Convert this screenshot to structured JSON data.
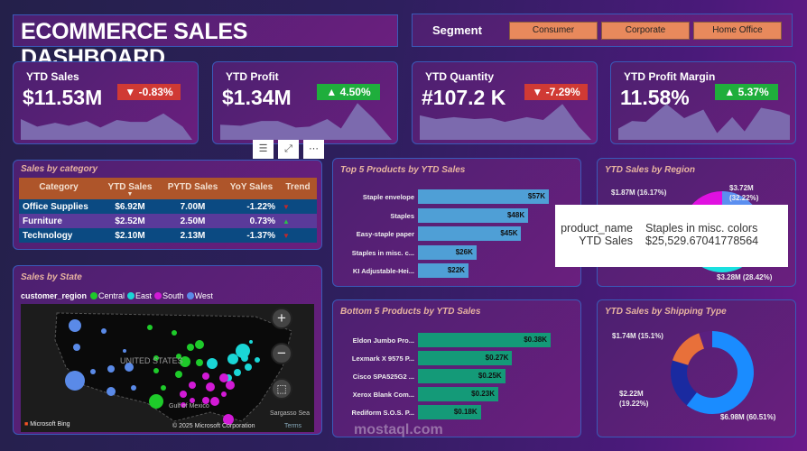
{
  "header": {
    "title": "ECOMMERCE SALES DASHBOARD",
    "segment_label": "Segment",
    "segments": [
      "Consumer",
      "Corporate",
      "Home Office"
    ]
  },
  "kpis": [
    {
      "label": "YTD Sales",
      "value": "$11.53M",
      "change": "-0.83%",
      "direction": "down"
    },
    {
      "label": "YTD Profit",
      "value": "$1.34M",
      "change": "4.50%",
      "direction": "up"
    },
    {
      "label": "YTD Quantity",
      "value": "#107.2 K",
      "change": "-7.29%",
      "direction": "down"
    },
    {
      "label": "YTD Profit Margin",
      "value": "11.58%",
      "change": "5.37%",
      "direction": "up"
    }
  ],
  "colors": {
    "negative": "#d03a34",
    "positive": "#1fae3c",
    "header_orange": "#ae552a",
    "bar_blue": "#4f9fd6",
    "bar_green": "#149a78",
    "sparkline": "#7c6aae"
  },
  "visual_header": {
    "icons": [
      "filter-icon",
      "focus-mode-icon",
      "more-options-icon"
    ],
    "labels": [
      "☰",
      "⤢",
      "⋯"
    ]
  },
  "category_table": {
    "title": "Sales by category",
    "columns": [
      "Category",
      "YTD Sales",
      "PYTD Sales",
      "YoY Sales",
      "Trend"
    ],
    "rows": [
      {
        "category": "Office Supplies",
        "ytd": "$6.92M",
        "pytd": "7.00M",
        "yoy": "-1.22%",
        "trend": "down"
      },
      {
        "category": "Furniture",
        "ytd": "$2.52M",
        "pytd": "2.50M",
        "yoy": "0.73%",
        "trend": "up"
      },
      {
        "category": "Technology",
        "ytd": "$2.10M",
        "pytd": "2.13M",
        "yoy": "-1.37%",
        "trend": "down"
      }
    ]
  },
  "state_map": {
    "title": "Sales by State",
    "legend_title": "customer_region",
    "legend": [
      {
        "name": "Central",
        "color": "#1ecb2a"
      },
      {
        "name": "East",
        "color": "#1ad6d6"
      },
      {
        "name": "South",
        "color": "#d21ad6"
      },
      {
        "name": "West",
        "color": "#5a8ae8"
      }
    ],
    "country_label": "UNITED STATES",
    "gulf_label": "Gulf of Mexico",
    "sea_label": "Sargasso Sea",
    "bing": "Microsoft Bing",
    "copyright": "© 2025 Microsoft Corporation",
    "terms": "Terms",
    "zoom_in": "+",
    "zoom_out": "−"
  },
  "top5": {
    "title": "Top 5 Products by YTD Sales",
    "items": [
      {
        "name": "Staple envelope",
        "value": 57,
        "label": "$57K"
      },
      {
        "name": "Staples",
        "value": 48,
        "label": "$48K"
      },
      {
        "name": "Easy-staple paper",
        "value": 45,
        "label": "$45K"
      },
      {
        "name": "Staples in misc. c...",
        "value": 25.5,
        "label": "$26K"
      },
      {
        "name": "KI Adjustable-Hei...",
        "value": 22,
        "label": "$22K"
      }
    ]
  },
  "tooltip": {
    "k1": "product_name",
    "v1": "Staples in misc. colors",
    "k2": "YTD Sales",
    "v2": "$25,529.67041778564"
  },
  "bottom5": {
    "title": "Bottom 5 Products by YTD Sales",
    "items": [
      {
        "name": "Eldon Jumbo Pro...",
        "value": 0.38,
        "label": "$0.38K"
      },
      {
        "name": "Lexmark X 9575 P...",
        "value": 0.27,
        "label": "$0.27K"
      },
      {
        "name": "Cisco SPA525G2 ...",
        "value": 0.25,
        "label": "$0.25K"
      },
      {
        "name": "Xerox Blank Com...",
        "value": 0.23,
        "label": "$0.23K"
      },
      {
        "name": "Rediform S.O.S. P...",
        "value": 0.18,
        "label": "$0.18K"
      }
    ]
  },
  "chart_data": [
    {
      "type": "pie",
      "title": "YTD Sales by Region",
      "slices": [
        {
          "value": 32.22,
          "color": "#5b8ff0",
          "label": "$3.72M (32.22%)"
        },
        {
          "value": 28.42,
          "color": "#1ae0e0",
          "label": "$3.28M (28.42%)"
        },
        {
          "value": 23.19,
          "color": "#22c22a",
          "label": ""
        },
        {
          "value": 16.17,
          "color": "#e010e0",
          "label": "$1.87M (16.17%)"
        }
      ]
    },
    {
      "type": "pie",
      "title": "YTD Sales by Shipping Type",
      "slices": [
        {
          "value": 60.51,
          "color": "#1a8cff",
          "label": "$6.98M (60.51%)"
        },
        {
          "value": 19.22,
          "color": "#1a2aa0",
          "label": "$2.22M (19.22%)"
        },
        {
          "value": 15.1,
          "color": "#e8703a",
          "label": "$1.74M (15.1%)"
        },
        {
          "value": 5.17,
          "color": "#5a2080",
          "label": ""
        }
      ]
    }
  ],
  "watermark": "mostaql.com"
}
